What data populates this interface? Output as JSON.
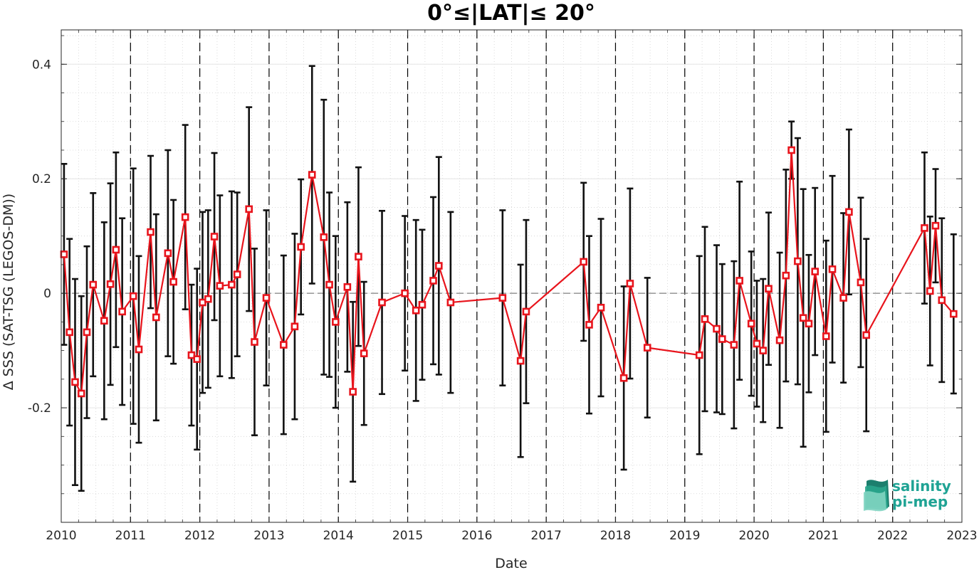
{
  "chart_data": {
    "type": "line",
    "title": "0°≤|LAT|≤ 20°",
    "xlabel": "Date",
    "ylabel": "Δ SSS (SAT-TSG (LEGOS-DM))",
    "xlim": [
      2010,
      2023
    ],
    "ylim": [
      -0.4,
      0.46
    ],
    "x_ticks": [
      "2010",
      "2011",
      "2012",
      "2013",
      "2014",
      "2015",
      "2016",
      "2017",
      "2018",
      "2019",
      "2020",
      "2021",
      "2022",
      "2023"
    ],
    "y_ticks": [
      {
        "value": -0.2,
        "label": "-0.2"
      },
      {
        "value": 0,
        "label": "0"
      },
      {
        "value": 0.2,
        "label": "0.2"
      },
      {
        "value": 0.4,
        "label": "0.4"
      }
    ],
    "grid": true,
    "zero_line": true,
    "year_separators": true,
    "series": [
      {
        "color": "#e8141c",
        "marker": "square",
        "x": [
          2010.04,
          2010.12,
          2010.2,
          2010.29,
          2010.37,
          2010.46,
          2010.62,
          2010.71,
          2010.79,
          2010.88,
          2011.04,
          2011.12,
          2011.29,
          2011.37,
          2011.54,
          2011.62,
          2011.79,
          2011.88,
          2011.96,
          2012.04,
          2012.12,
          2012.21,
          2012.29,
          2012.46,
          2012.54,
          2012.71,
          2012.79,
          2012.96,
          2013.21,
          2013.37,
          2013.46,
          2013.62,
          2013.79,
          2013.87,
          2013.96,
          2014.13,
          2014.21,
          2014.29,
          2014.37,
          2014.63,
          2014.96,
          2015.12,
          2015.21,
          2015.37,
          2015.45,
          2015.62,
          2016.37,
          2016.63,
          2016.71,
          2017.54,
          2017.62,
          2017.79,
          2018.12,
          2018.21,
          2018.46,
          2019.21,
          2019.29,
          2019.46,
          2019.54,
          2019.71,
          2019.79,
          2019.96,
          2020.04,
          2020.13,
          2020.21,
          2020.37,
          2020.46,
          2020.54,
          2020.63,
          2020.71,
          2020.79,
          2020.88,
          2021.04,
          2021.13,
          2021.29,
          2021.37,
          2021.54,
          2021.62,
          2022.46,
          2022.54,
          2022.62,
          2022.71,
          2022.88
        ],
        "y": [
          0.068,
          -0.068,
          -0.155,
          -0.175,
          -0.068,
          0.015,
          -0.048,
          0.016,
          0.076,
          -0.032,
          -0.005,
          -0.098,
          0.107,
          -0.042,
          0.07,
          0.02,
          0.133,
          -0.108,
          -0.115,
          -0.016,
          -0.01,
          0.099,
          0.013,
          0.015,
          0.033,
          0.147,
          -0.085,
          -0.008,
          -0.09,
          -0.058,
          0.081,
          0.207,
          0.098,
          0.015,
          -0.05,
          0.011,
          -0.172,
          0.064,
          -0.105,
          -0.016,
          0.0,
          -0.03,
          -0.02,
          0.022,
          0.048,
          -0.016,
          -0.008,
          -0.118,
          -0.032,
          0.055,
          -0.055,
          -0.025,
          -0.148,
          0.017,
          -0.095,
          -0.108,
          -0.045,
          -0.062,
          -0.08,
          -0.09,
          0.022,
          -0.053,
          -0.088,
          -0.1,
          0.008,
          -0.082,
          0.031,
          0.25,
          0.056,
          -0.043,
          -0.053,
          0.038,
          -0.075,
          0.042,
          -0.008,
          0.142,
          0.019,
          -0.073,
          0.114,
          0.004,
          0.118,
          -0.012,
          -0.036
        ],
        "err": [
          0.158,
          0.163,
          0.18,
          0.17,
          0.15,
          0.16,
          0.172,
          0.176,
          0.17,
          0.163,
          0.223,
          0.163,
          0.133,
          0.18,
          0.18,
          0.143,
          0.161,
          0.123,
          0.158,
          0.158,
          0.155,
          0.146,
          0.158,
          0.163,
          0.143,
          0.178,
          0.163,
          0.153,
          0.156,
          0.162,
          0.118,
          0.19,
          0.24,
          0.161,
          0.15,
          0.148,
          0.157,
          0.156,
          0.125,
          0.16,
          0.135,
          0.158,
          0.131,
          0.146,
          0.19,
          0.158,
          0.153,
          0.168,
          0.16,
          0.138,
          0.155,
          0.155,
          0.16,
          0.166,
          0.122,
          0.173,
          0.161,
          0.146,
          0.131,
          0.146,
          0.173,
          0.126,
          0.11,
          0.125,
          0.133,
          0.153,
          0.185,
          0.05,
          0.215,
          0.225,
          0.12,
          0.146,
          0.167,
          0.163,
          0.148,
          0.144,
          0.148,
          0.168,
          0.132,
          0.13,
          0.099,
          0.143,
          0.139
        ]
      }
    ]
  },
  "logo": {
    "line1": "salinity",
    "line2": "pi-mep"
  }
}
